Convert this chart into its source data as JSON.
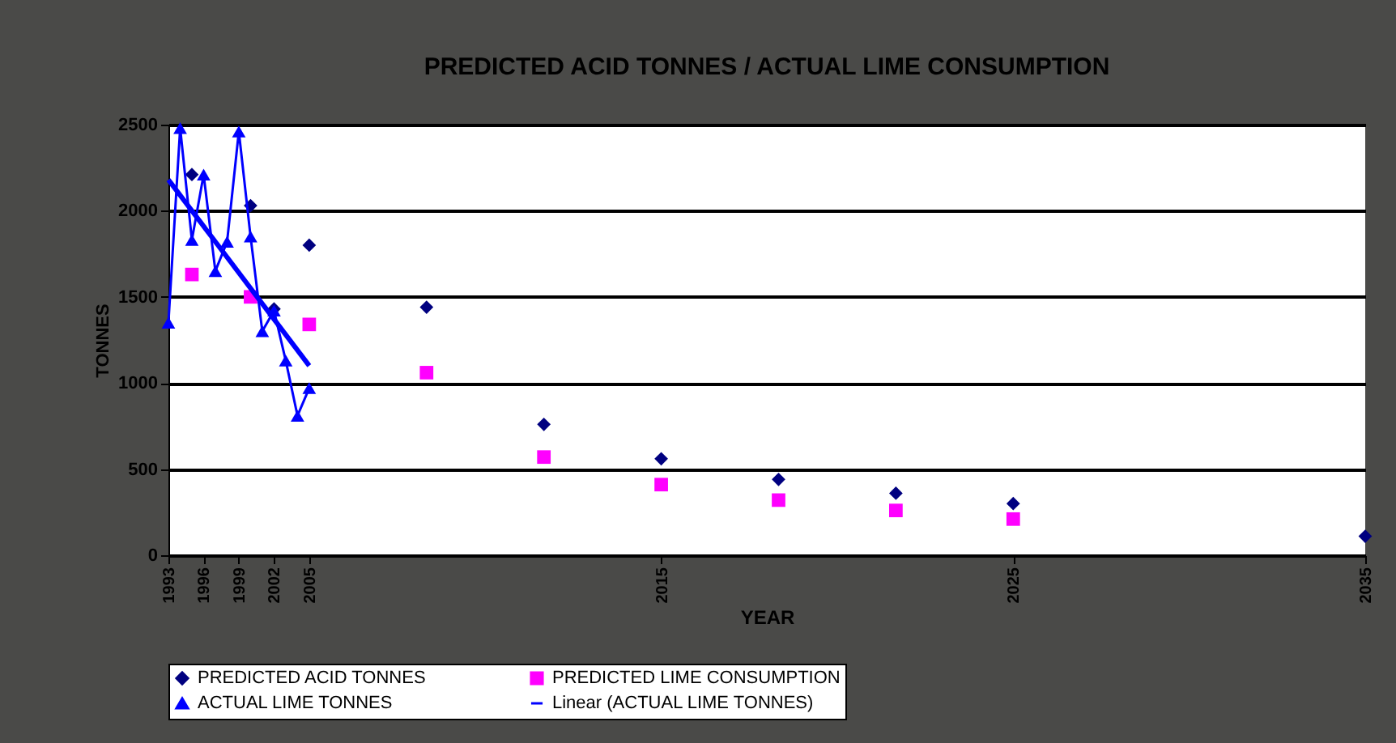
{
  "chart_data": {
    "type": "line",
    "title": "PREDICTED ACID TONNES / ACTUAL LIME CONSUMPTION",
    "xlabel": "YEAR",
    "ylabel": "TONNES",
    "categories": [
      "1993",
      null,
      null,
      "1996",
      null,
      null,
      "1999",
      null,
      null,
      "2002",
      null,
      null,
      "2005",
      null,
      null,
      null,
      null,
      null,
      null,
      null,
      null,
      null,
      null,
      null,
      null,
      null,
      null,
      null,
      null,
      null,
      null,
      null,
      null,
      null,
      null,
      null,
      null,
      null,
      null,
      null,
      null,
      null,
      "2015",
      null,
      null,
      null,
      null,
      null,
      null,
      null,
      null,
      null,
      null,
      null,
      null,
      null,
      null,
      null,
      null,
      null,
      null,
      null,
      null,
      null,
      null,
      null,
      null,
      null,
      null,
      null,
      null,
      null,
      "2025",
      null,
      null,
      null,
      null,
      null,
      null,
      null,
      null,
      null,
      null,
      null,
      null,
      null,
      null,
      null,
      null,
      null,
      null,
      null,
      null,
      null,
      null,
      null,
      null,
      null,
      null,
      null,
      null,
      null,
      "2035"
    ],
    "ylim": [
      0,
      2500
    ],
    "yticks": [
      0,
      500,
      1000,
      1500,
      2000,
      2500
    ],
    "grid": "y",
    "legend": "bottom",
    "series": [
      {
        "name": "PREDICTED ACID TONNES",
        "type": "scatter",
        "marker": "diamond",
        "color": "#000080",
        "values": [
          null,
          null,
          2210,
          null,
          null,
          null,
          null,
          2030,
          null,
          1430,
          null,
          null,
          1800,
          null,
          null,
          null,
          null,
          null,
          null,
          null,
          null,
          null,
          1440,
          null,
          null,
          null,
          null,
          null,
          null,
          null,
          null,
          null,
          760,
          null,
          null,
          null,
          null,
          null,
          null,
          null,
          null,
          null,
          560,
          null,
          null,
          null,
          null,
          null,
          null,
          null,
          null,
          null,
          440,
          null,
          null,
          null,
          null,
          null,
          null,
          null,
          null,
          null,
          360,
          null,
          null,
          null,
          null,
          null,
          null,
          null,
          null,
          null,
          300,
          null,
          null,
          null,
          null,
          null,
          null,
          null,
          null,
          null,
          null,
          null,
          null,
          null,
          null,
          null,
          null,
          null,
          null,
          null,
          null,
          null,
          null,
          null,
          null,
          null,
          null,
          null,
          null,
          null,
          110
        ]
      },
      {
        "name": "PREDICTED LIME CONSUMPTION",
        "type": "scatter",
        "marker": "square",
        "color": "#ff00ff",
        "values": [
          null,
          null,
          1630,
          null,
          null,
          null,
          null,
          1500,
          null,
          null,
          null,
          null,
          1340,
          null,
          null,
          null,
          null,
          null,
          null,
          null,
          null,
          null,
          1060,
          null,
          null,
          null,
          null,
          null,
          null,
          null,
          null,
          null,
          570,
          null,
          null,
          null,
          null,
          null,
          null,
          null,
          null,
          null,
          410,
          null,
          null,
          null,
          null,
          null,
          null,
          null,
          null,
          null,
          320,
          null,
          null,
          null,
          null,
          null,
          null,
          null,
          null,
          null,
          260,
          null,
          null,
          null,
          null,
          null,
          null,
          null,
          null,
          null,
          210,
          null,
          null,
          null,
          null,
          null,
          null,
          null,
          null,
          null,
          null,
          null,
          null,
          null,
          null,
          null,
          null,
          null,
          null,
          null,
          null,
          null,
          null,
          null,
          null,
          null,
          null,
          null,
          null,
          null,
          null
        ]
      },
      {
        "name": "ACTUAL LIME TONNES",
        "marker": "triangle",
        "color": "#0000ff",
        "values": [
          1350,
          2480,
          1830,
          2210,
          1650,
          1820,
          2460,
          1850,
          1300,
          1420,
          1130,
          810,
          970,
          null,
          null,
          null,
          null,
          null,
          null,
          null,
          null,
          null,
          null,
          null,
          null,
          null,
          null,
          null,
          null,
          null,
          null,
          null,
          null,
          null,
          null,
          null,
          null,
          null,
          null,
          null,
          null,
          null,
          null,
          null,
          null,
          null,
          null,
          null,
          null,
          null,
          null,
          null,
          null,
          null,
          null,
          null,
          null,
          null,
          null,
          null,
          null,
          null,
          null,
          null,
          null,
          null,
          null,
          null,
          null,
          null,
          null,
          null,
          null,
          null,
          null,
          null,
          null,
          null,
          null,
          null,
          null,
          null,
          null,
          null,
          null,
          null,
          null,
          null,
          null,
          null,
          null,
          null,
          null,
          null,
          null,
          null,
          null,
          null,
          null,
          null,
          null,
          null,
          null
        ]
      },
      {
        "name": "Linear (ACTUAL LIME TONNES)",
        "marker": "none",
        "color": "#0000ff",
        "values": [
          2180,
          null,
          null,
          null,
          null,
          null,
          null,
          null,
          null,
          null,
          null,
          null,
          1100,
          null,
          null,
          null,
          null,
          null,
          null,
          null,
          null,
          null,
          null,
          null,
          null,
          null,
          null,
          null,
          null,
          null,
          null,
          null,
          null,
          null,
          null,
          null,
          null,
          null,
          null,
          null,
          null,
          null,
          null,
          null,
          null,
          null,
          null,
          null,
          null,
          null,
          null,
          null,
          null,
          null,
          null,
          null,
          null,
          null,
          null,
          null,
          null,
          null,
          null,
          null,
          null,
          null,
          null,
          null,
          null,
          null,
          null,
          null,
          null,
          null,
          null,
          null,
          null,
          null,
          null,
          null,
          null,
          null,
          null,
          null,
          null,
          null,
          null,
          null,
          null,
          null,
          null,
          null,
          null,
          null,
          null,
          null,
          null,
          null,
          null,
          null,
          null,
          null,
          null
        ]
      }
    ]
  }
}
